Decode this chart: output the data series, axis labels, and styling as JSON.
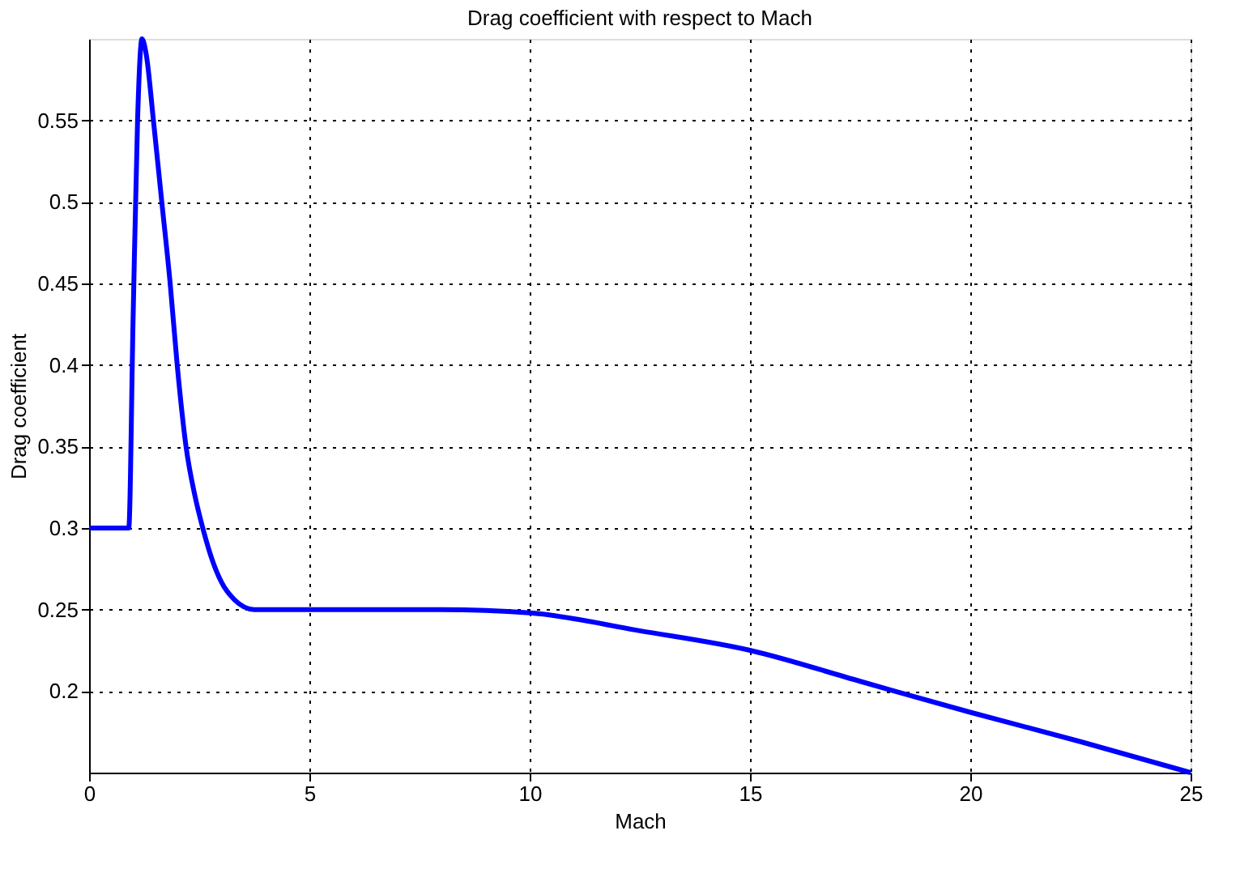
{
  "chart_data": {
    "type": "line",
    "title": "Drag coefficient with respect to Mach",
    "xlabel": "Mach",
    "ylabel": "Drag coefficient",
    "series": [
      {
        "color": "#0000ff",
        "x": [
          0,
          0.9,
          1.0,
          1.1,
          1.2,
          1.3,
          1.46,
          1.65,
          1.84,
          2.0,
          2.2,
          2.4,
          2.58,
          2.8,
          3.0,
          3.3,
          3.75,
          5,
          8,
          10,
          12.5,
          15,
          17.5,
          20,
          22.5,
          25
        ],
        "values": [
          0.3,
          0.3,
          0.43,
          0.55,
          0.6,
          0.59,
          0.55,
          0.5,
          0.45,
          0.4,
          0.35,
          0.32,
          0.3,
          0.28,
          0.267,
          0.256,
          0.25,
          0.25,
          0.25,
          0.248,
          0.237,
          0.225,
          0.206,
          0.187,
          0.169,
          0.15
        ]
      }
    ],
    "xlim": [
      0,
      25
    ],
    "xticks": [
      0,
      5,
      10,
      15,
      20,
      25
    ],
    "ylim": [
      0.15,
      0.6
    ],
    "yticks": [
      0.2,
      0.25,
      0.3,
      0.35,
      0.4,
      0.45,
      0.5,
      0.55
    ],
    "grid": true,
    "line_style": "solid",
    "marker": "none",
    "legend": false
  }
}
